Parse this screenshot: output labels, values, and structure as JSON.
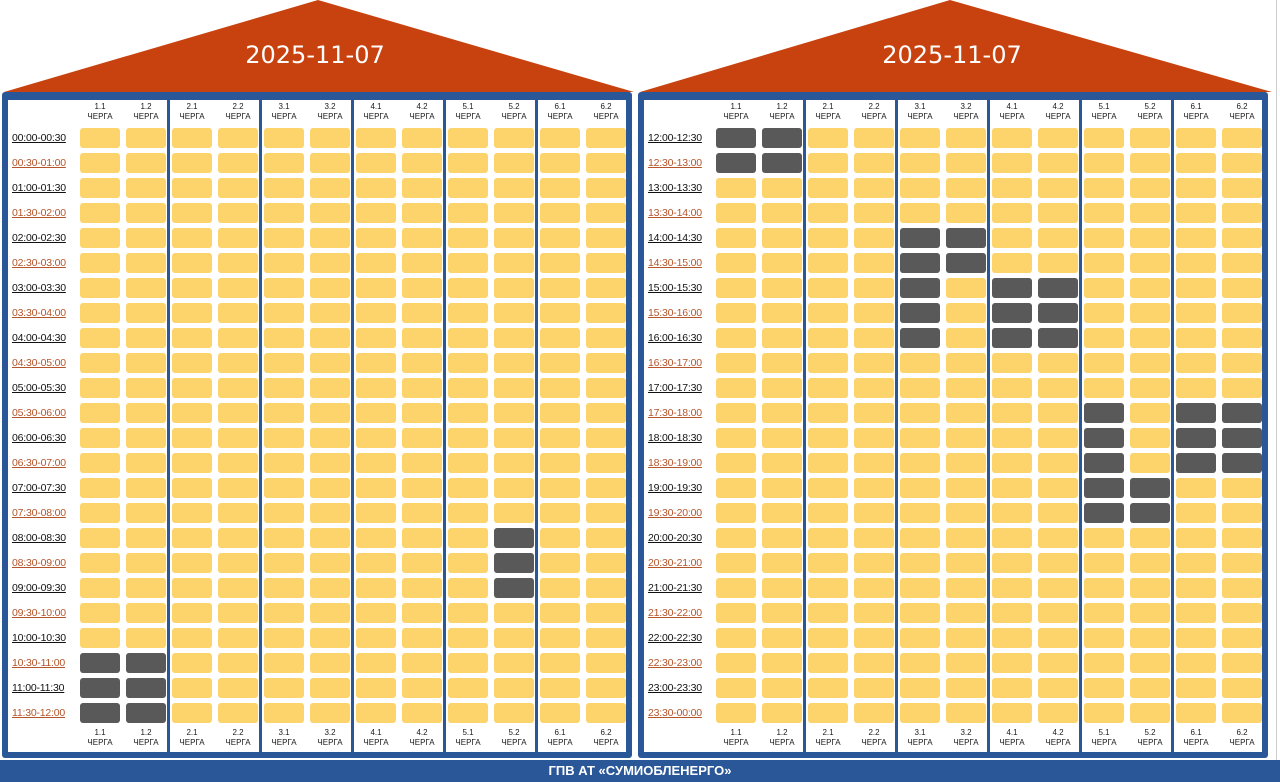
{
  "colors": {
    "roof": "#c8420f",
    "frame": "#2a5798",
    "on": "#fdd46b",
    "off": "#595959"
  },
  "schedules": [
    {
      "date": "2025-11-07",
      "queue_headers": [
        {
          "num": "1.1",
          "word": "ЧЕРГА"
        },
        {
          "num": "1.2",
          "word": "ЧЕРГА"
        },
        {
          "num": "2.1",
          "word": "ЧЕРГА"
        },
        {
          "num": "2.2",
          "word": "ЧЕРГА"
        },
        {
          "num": "3.1",
          "word": "ЧЕРГА"
        },
        {
          "num": "3.2",
          "word": "ЧЕРГА"
        },
        {
          "num": "4.1",
          "word": "ЧЕРГА"
        },
        {
          "num": "4.2",
          "word": "ЧЕРГА"
        },
        {
          "num": "5.1",
          "word": "ЧЕРГА"
        },
        {
          "num": "5.2",
          "word": "ЧЕРГА"
        },
        {
          "num": "6.1",
          "word": "ЧЕРГА"
        },
        {
          "num": "6.2",
          "word": "ЧЕРГА"
        }
      ],
      "slots": [
        {
          "time": "00:00-00:30",
          "off": []
        },
        {
          "time": "00:30-01:00",
          "off": []
        },
        {
          "time": "01:00-01:30",
          "off": []
        },
        {
          "time": "01:30-02:00",
          "off": []
        },
        {
          "time": "02:00-02:30",
          "off": []
        },
        {
          "time": "02:30-03:00",
          "off": []
        },
        {
          "time": "03:00-03:30",
          "off": []
        },
        {
          "time": "03:30-04:00",
          "off": []
        },
        {
          "time": "04:00-04:30",
          "off": []
        },
        {
          "time": "04:30-05:00",
          "off": []
        },
        {
          "time": "05:00-05:30",
          "off": []
        },
        {
          "time": "05:30-06:00",
          "off": []
        },
        {
          "time": "06:00-06:30",
          "off": []
        },
        {
          "time": "06:30-07:00",
          "off": []
        },
        {
          "time": "07:00-07:30",
          "off": []
        },
        {
          "time": "07:30-08:00",
          "off": []
        },
        {
          "time": "08:00-08:30",
          "off": [
            "5.2"
          ]
        },
        {
          "time": "08:30-09:00",
          "off": [
            "5.2"
          ]
        },
        {
          "time": "09:00-09:30",
          "off": [
            "5.2"
          ]
        },
        {
          "time": "09:30-10:00",
          "off": []
        },
        {
          "time": "10:00-10:30",
          "off": []
        },
        {
          "time": "10:30-11:00",
          "off": [
            "1.1",
            "1.2"
          ]
        },
        {
          "time": "11:00-11:30",
          "off": [
            "1.1",
            "1.2"
          ]
        },
        {
          "time": "11:30-12:00",
          "off": [
            "1.1",
            "1.2"
          ]
        }
      ]
    },
    {
      "date": "2025-11-07",
      "queue_headers": [
        {
          "num": "1.1",
          "word": "ЧЕРГА"
        },
        {
          "num": "1.2",
          "word": "ЧЕРГА"
        },
        {
          "num": "2.1",
          "word": "ЧЕРГА"
        },
        {
          "num": "2.2",
          "word": "ЧЕРГА"
        },
        {
          "num": "3.1",
          "word": "ЧЕРГА"
        },
        {
          "num": "3.2",
          "word": "ЧЕРГА"
        },
        {
          "num": "4.1",
          "word": "ЧЕРГА"
        },
        {
          "num": "4.2",
          "word": "ЧЕРГА"
        },
        {
          "num": "5.1",
          "word": "ЧЕРГА"
        },
        {
          "num": "5.2",
          "word": "ЧЕРГА"
        },
        {
          "num": "6.1",
          "word": "ЧЕРГА"
        },
        {
          "num": "6.2",
          "word": "ЧЕРГА"
        }
      ],
      "slots": [
        {
          "time": "12:00-12:30",
          "off": [
            "1.1",
            "1.2"
          ]
        },
        {
          "time": "12:30-13:00",
          "off": [
            "1.1",
            "1.2"
          ]
        },
        {
          "time": "13:00-13:30",
          "off": []
        },
        {
          "time": "13:30-14:00",
          "off": []
        },
        {
          "time": "14:00-14:30",
          "off": [
            "3.1",
            "3.2"
          ]
        },
        {
          "time": "14:30-15:00",
          "off": [
            "3.1",
            "3.2"
          ]
        },
        {
          "time": "15:00-15:30",
          "off": [
            "3.1",
            "4.1",
            "4.2"
          ]
        },
        {
          "time": "15:30-16:00",
          "off": [
            "3.1",
            "4.1",
            "4.2"
          ]
        },
        {
          "time": "16:00-16:30",
          "off": [
            "3.1",
            "4.1",
            "4.2"
          ]
        },
        {
          "time": "16:30-17:00",
          "off": []
        },
        {
          "time": "17:00-17:30",
          "off": []
        },
        {
          "time": "17:30-18:00",
          "off": [
            "5.1",
            "6.1",
            "6.2"
          ]
        },
        {
          "time": "18:00-18:30",
          "off": [
            "5.1",
            "6.1",
            "6.2"
          ]
        },
        {
          "time": "18:30-19:00",
          "off": [
            "5.1",
            "6.1",
            "6.2"
          ]
        },
        {
          "time": "19:00-19:30",
          "off": [
            "5.1",
            "5.2"
          ]
        },
        {
          "time": "19:30-20:00",
          "off": [
            "5.1",
            "5.2"
          ]
        },
        {
          "time": "20:00-20:30",
          "off": []
        },
        {
          "time": "20:30-21:00",
          "off": []
        },
        {
          "time": "21:00-21:30",
          "off": []
        },
        {
          "time": "21:30-22:00",
          "off": []
        },
        {
          "time": "22:00-22:30",
          "off": []
        },
        {
          "time": "22:30-23:00",
          "off": []
        },
        {
          "time": "23:00-23:30",
          "off": []
        },
        {
          "time": "23:30-00:00",
          "off": []
        }
      ]
    }
  ],
  "footer": {
    "text": "ГПВ АТ «СУМИОБЛЕНЕРГО»"
  }
}
